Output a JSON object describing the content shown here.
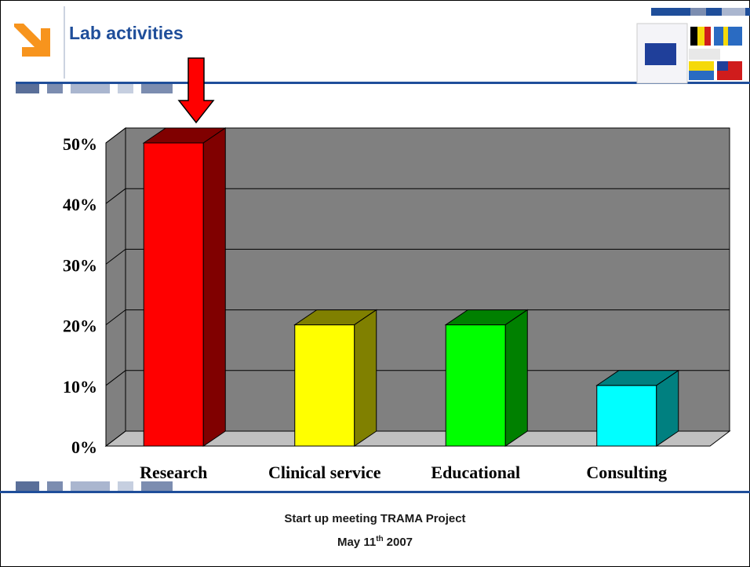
{
  "chart_data": {
    "type": "bar3d",
    "title": "Lab activities",
    "categories": [
      "Research",
      "Clinical service",
      "Educational",
      "Consulting"
    ],
    "values": [
      50,
      20,
      20,
      10
    ],
    "colors": [
      "#ff0000",
      "#ffff00",
      "#00ff00",
      "#00ffff"
    ],
    "ylim": [
      0,
      50
    ],
    "yticks": [
      {
        "value": 0,
        "label": "0%"
      },
      {
        "value": 10,
        "label": "10%"
      },
      {
        "value": 20,
        "label": "20%"
      },
      {
        "value": 30,
        "label": "30%"
      },
      {
        "value": 40,
        "label": "40%"
      },
      {
        "value": 50,
        "label": "50%"
      }
    ],
    "grid": true
  },
  "footer": {
    "line1": "Start up meeting TRAMA Project",
    "date_day": "May 11",
    "date_suffix": "th",
    "date_year": "2007"
  }
}
